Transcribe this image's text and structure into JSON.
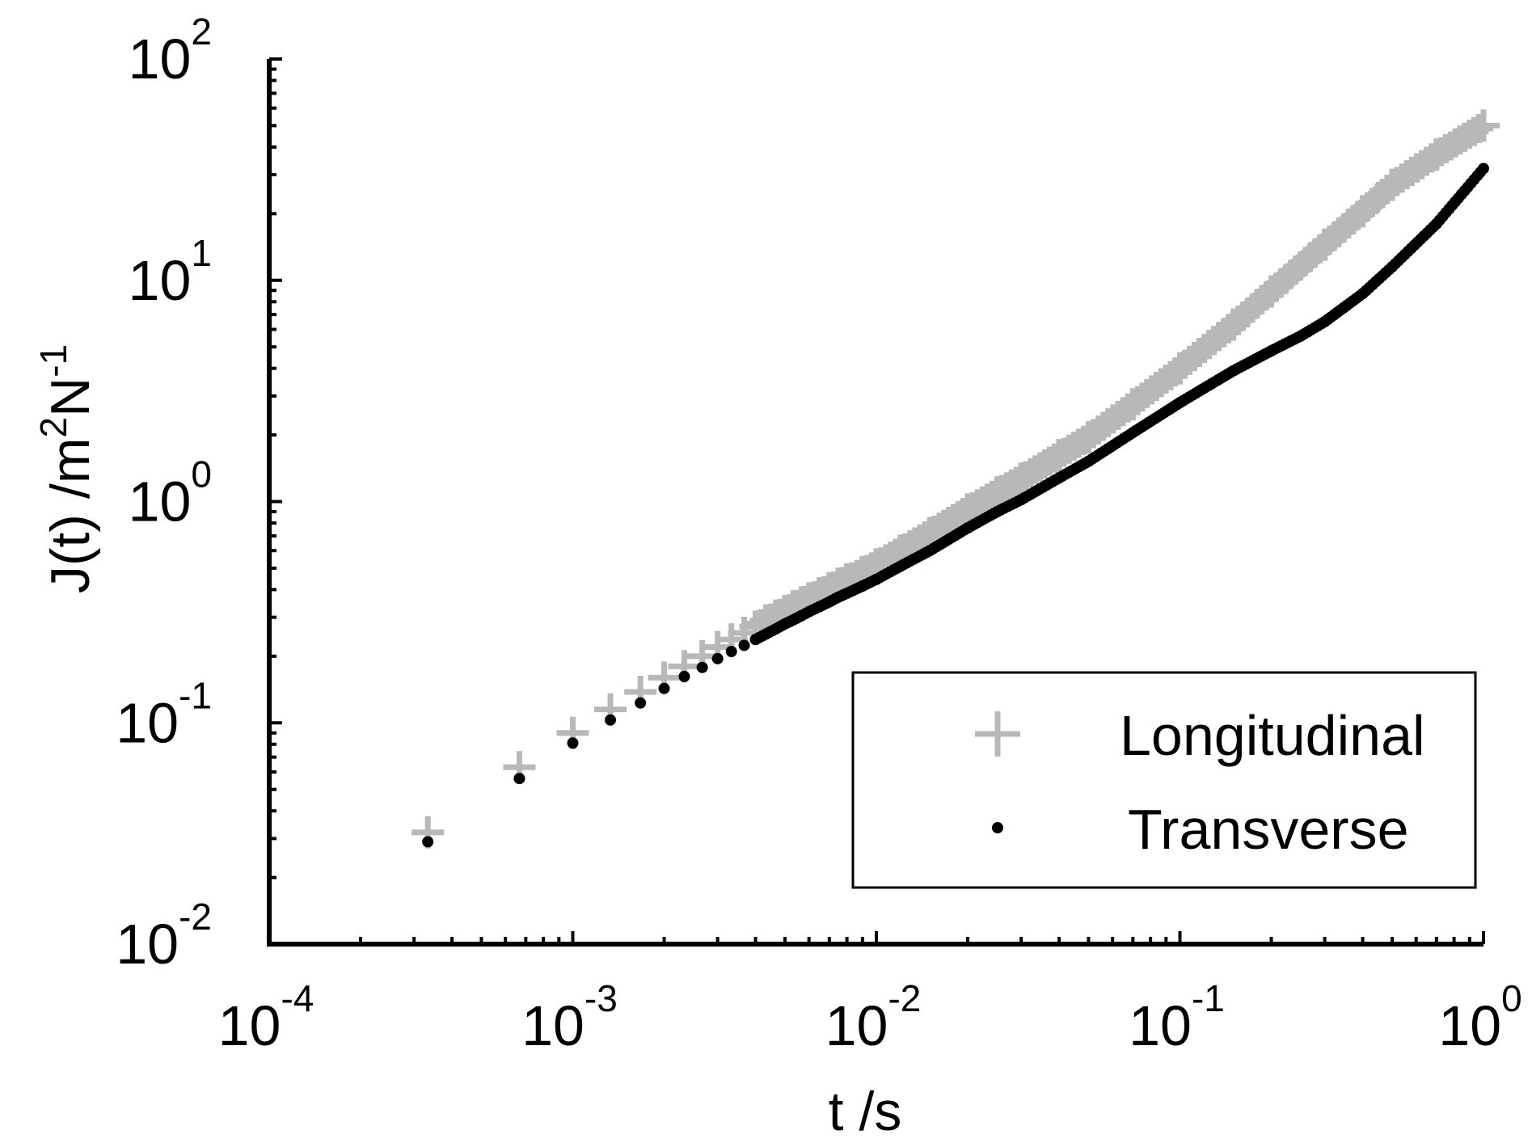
{
  "chart_data": {
    "type": "scatter",
    "x_scale": "log",
    "y_scale": "log",
    "xlim": [
      0.0001,
      1
    ],
    "ylim": [
      0.01,
      100
    ],
    "grid": false,
    "legend_position": "bottom-right",
    "xlabel": "t /s",
    "ylabel": {
      "base": "J(t) /m",
      "sup1": "2",
      "mid": "N",
      "sup2": "-1"
    },
    "x_ticks": [
      {
        "base": "10",
        "exp": "-4",
        "value": 0.0001
      },
      {
        "base": "10",
        "exp": "-3",
        "value": 0.001
      },
      {
        "base": "10",
        "exp": "-2",
        "value": 0.01
      },
      {
        "base": "10",
        "exp": "-1",
        "value": 0.1
      },
      {
        "base": "10",
        "exp": "0",
        "value": 1
      }
    ],
    "y_ticks": [
      {
        "base": "10",
        "exp": "-2",
        "value": 0.01
      },
      {
        "base": "10",
        "exp": "-1",
        "value": 0.1
      },
      {
        "base": "10",
        "exp": "0",
        "value": 1
      },
      {
        "base": "10",
        "exp": "1",
        "value": 10
      },
      {
        "base": "10",
        "exp": "2",
        "value": 100
      }
    ],
    "series": [
      {
        "name": "Longitudinal",
        "marker": "plus",
        "color": "#b8b8b8",
        "x": [
          0.000333,
          0.000667,
          0.001,
          0.00133,
          0.00167,
          0.002,
          0.00233,
          0.00267,
          0.003,
          0.00333,
          0.00367,
          0.004,
          0.00433,
          0.00467,
          0.005,
          0.00533,
          0.00567,
          0.006,
          0.0065,
          0.007,
          0.0075,
          0.008,
          0.009,
          0.01,
          0.012,
          0.015,
          0.02,
          0.025,
          0.03,
          0.04,
          0.05,
          0.07,
          0.1,
          0.15,
          0.2,
          0.3,
          0.4,
          0.5,
          0.7,
          1.0
        ],
        "y": [
          0.032,
          0.063,
          0.09,
          0.115,
          0.138,
          0.16,
          0.18,
          0.2,
          0.22,
          0.238,
          0.255,
          0.272,
          0.29,
          0.305,
          0.32,
          0.336,
          0.35,
          0.365,
          0.385,
          0.405,
          0.425,
          0.445,
          0.48,
          0.52,
          0.6,
          0.72,
          0.92,
          1.1,
          1.27,
          1.62,
          1.95,
          2.75,
          4.0,
          6.3,
          8.9,
          14.5,
          20.5,
          27.0,
          37.0,
          50.0
        ],
        "spread": [
          0.0,
          0.0,
          0.0,
          0.0,
          0.0,
          0.0,
          0.0,
          0.0,
          0.0,
          0.0,
          0.0,
          0.0,
          0.0,
          0.0,
          0.0,
          0.0,
          0.0,
          0.0,
          0.0,
          0.0,
          0.0,
          0.0,
          0.0,
          0.0,
          0.0,
          0.0,
          0.0,
          0.0,
          0.0,
          0.0,
          0.0,
          0.0,
          0.0,
          0.0,
          0.0,
          0.0,
          0.0,
          0.0,
          0.0,
          0.0
        ]
      },
      {
        "name": "Transverse",
        "marker": "dot",
        "color": "#000000",
        "x": [
          0.000333,
          0.000667,
          0.001,
          0.00133,
          0.00167,
          0.002,
          0.00233,
          0.00267,
          0.003,
          0.00333,
          0.00367,
          0.004,
          0.00433,
          0.00467,
          0.005,
          0.00533,
          0.00567,
          0.006,
          0.0065,
          0.007,
          0.0075,
          0.008,
          0.009,
          0.01,
          0.012,
          0.015,
          0.02,
          0.025,
          0.03,
          0.04,
          0.05,
          0.07,
          0.1,
          0.15,
          0.2,
          0.25,
          0.3,
          0.4,
          0.5,
          0.7,
          1.0
        ],
        "y": [
          0.029,
          0.056,
          0.081,
          0.103,
          0.123,
          0.143,
          0.162,
          0.178,
          0.195,
          0.21,
          0.224,
          0.238,
          0.252,
          0.266,
          0.28,
          0.292,
          0.305,
          0.318,
          0.335,
          0.352,
          0.37,
          0.385,
          0.415,
          0.445,
          0.51,
          0.6,
          0.76,
          0.9,
          1.02,
          1.28,
          1.52,
          2.05,
          2.8,
          3.9,
          4.8,
          5.6,
          6.5,
          8.7,
          11.5,
          18.0,
          32.0
        ]
      }
    ]
  }
}
